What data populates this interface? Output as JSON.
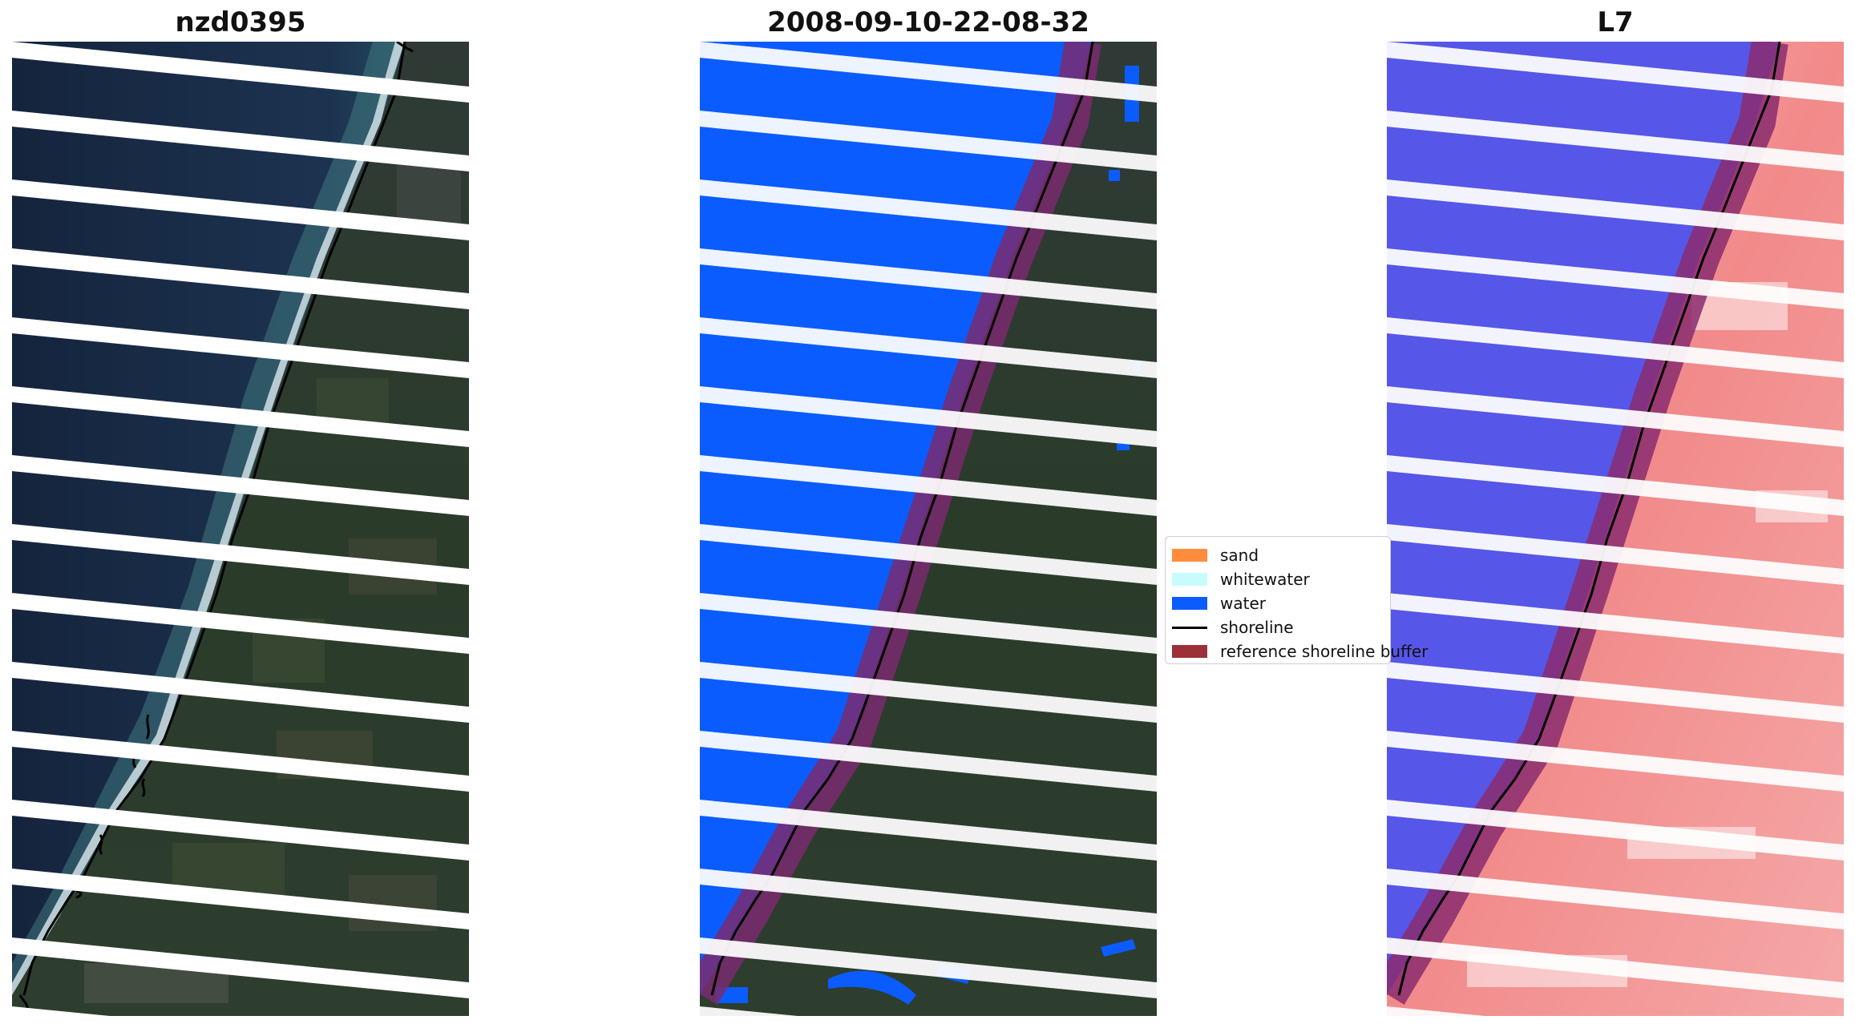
{
  "panels": [
    {
      "title": "nzd0395"
    },
    {
      "title": "2008-09-10-22-08-32"
    },
    {
      "title": "L7"
    }
  ],
  "legend": {
    "items": [
      {
        "label": "sand",
        "color": "#ff8c3a"
      },
      {
        "label": "whitewater",
        "color": "#c8fcfc"
      },
      {
        "label": "water",
        "color": "#0a5cff"
      },
      {
        "label": "shoreline",
        "color": "#000000"
      },
      {
        "label": "reference shoreline buffer",
        "color": "#9c3038"
      }
    ]
  },
  "colors": {
    "sea": "#1a2c48",
    "land": "#2b3b2c",
    "surf": "#e9f3f7",
    "water_class": "#0a5cff",
    "ndwi_water": "#5050e6",
    "ndwi_land": "#f07070",
    "buffer": "#9c3038",
    "gap": "#ffffff"
  }
}
